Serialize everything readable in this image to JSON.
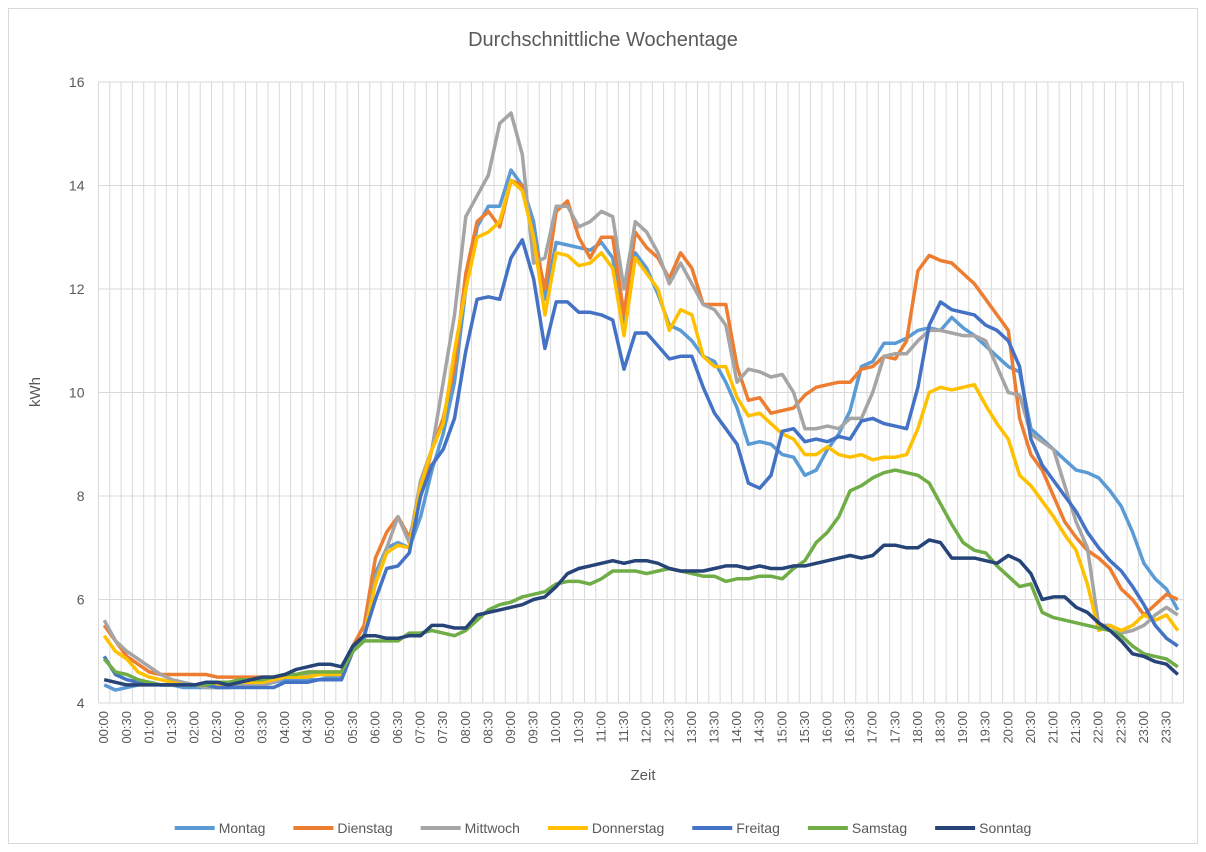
{
  "chart_data": {
    "type": "line",
    "title": "Durchschnittliche Wochentage",
    "y_label": "kWh",
    "x_label": "Zeit",
    "categories": [
      "00:00",
      null,
      "00:30",
      null,
      "01:00",
      null,
      "01:30",
      null,
      "02:00",
      null,
      "02:30",
      null,
      "03:00",
      null,
      "03:30",
      null,
      "04:00",
      null,
      "04:30",
      null,
      "05:00",
      null,
      "05:30",
      null,
      "06:00",
      null,
      "06:30",
      null,
      "07:00",
      null,
      "07:30",
      null,
      "08:00",
      null,
      "08:30",
      null,
      "09:00",
      null,
      "09:30",
      null,
      "10:00",
      null,
      "10:30",
      null,
      "11:00",
      null,
      "11:30",
      null,
      "12:00",
      null,
      "12:30",
      null,
      "13:00",
      null,
      "13:30",
      null,
      "14:00",
      null,
      "14:30",
      null,
      "15:00",
      null,
      "15:30",
      null,
      "16:00",
      null,
      "16:30",
      null,
      "17:00",
      null,
      "17:30",
      null,
      "18:00",
      null,
      "18:30",
      null,
      "19:00",
      null,
      "19:30",
      null,
      "20:00",
      null,
      "20:30",
      null,
      "21:00",
      null,
      "21:30",
      null,
      "22:00",
      null,
      "22:30",
      null,
      "23:00",
      null,
      "23:30",
      null
    ],
    "ylim": [
      4,
      16
    ],
    "yticks": [
      4,
      6,
      8,
      10,
      12,
      14,
      16
    ],
    "grid": true,
    "legend": "bottom",
    "series": [
      {
        "name": "Montag",
        "color": "#5b9bd5",
        "values": [
          4.35,
          4.25,
          4.3,
          4.35,
          4.4,
          4.35,
          4.35,
          4.3,
          4.3,
          4.3,
          4.3,
          4.3,
          4.35,
          4.35,
          4.35,
          4.4,
          4.45,
          4.45,
          4.45,
          4.45,
          4.5,
          4.5,
          5.0,
          5.2,
          6.5,
          7.0,
          7.1,
          7.0,
          7.6,
          8.5,
          9.2,
          10.2,
          12.0,
          13.2,
          13.6,
          13.6,
          14.3,
          14.0,
          13.3,
          11.8,
          12.9,
          12.85,
          12.8,
          12.75,
          12.9,
          12.6,
          11.3,
          12.7,
          12.4,
          11.9,
          11.3,
          11.2,
          11.0,
          10.7,
          10.6,
          10.2,
          9.7,
          9.0,
          9.05,
          9.0,
          8.8,
          8.75,
          8.4,
          8.5,
          8.9,
          9.2,
          9.65,
          10.5,
          10.6,
          10.95,
          10.95,
          11.05,
          11.2,
          11.25,
          11.2,
          11.45,
          11.25,
          11.1,
          10.9,
          10.7,
          10.5,
          10.4,
          9.3,
          9.1,
          8.9,
          8.7,
          8.5,
          8.45,
          8.35,
          8.1,
          7.8,
          7.3,
          6.7,
          6.4,
          6.2,
          5.8
        ]
      },
      {
        "name": "Dienstag",
        "color": "#ed7d31",
        "values": [
          5.5,
          5.2,
          4.9,
          4.75,
          4.6,
          4.55,
          4.55,
          4.55,
          4.55,
          4.55,
          4.5,
          4.5,
          4.5,
          4.5,
          4.5,
          4.5,
          4.55,
          4.55,
          4.6,
          4.6,
          4.6,
          4.6,
          5.1,
          5.5,
          6.8,
          7.3,
          7.6,
          7.2,
          8.0,
          8.9,
          9.5,
          10.5,
          12.3,
          13.3,
          13.5,
          13.2,
          14.1,
          14.0,
          13.0,
          12.0,
          13.5,
          13.7,
          13.0,
          12.6,
          13.0,
          13.0,
          11.5,
          13.1,
          12.8,
          12.6,
          12.2,
          12.7,
          12.4,
          11.7,
          11.7,
          11.7,
          10.5,
          9.85,
          9.9,
          9.6,
          9.65,
          9.7,
          9.95,
          10.1,
          10.15,
          10.2,
          10.2,
          10.45,
          10.5,
          10.7,
          10.65,
          11.0,
          12.35,
          12.65,
          12.55,
          12.5,
          12.3,
          12.1,
          11.8,
          11.5,
          11.2,
          9.5,
          8.8,
          8.5,
          8.0,
          7.5,
          7.2,
          6.95,
          6.8,
          6.6,
          6.2,
          6.0,
          5.7,
          5.9,
          6.1,
          6.0
        ]
      },
      {
        "name": "Mittwoch",
        "color": "#a5a5a5",
        "values": [
          5.6,
          5.2,
          5.0,
          4.85,
          4.7,
          4.55,
          4.45,
          4.4,
          4.35,
          4.3,
          4.3,
          4.3,
          4.35,
          4.35,
          4.35,
          4.4,
          4.5,
          4.5,
          4.55,
          4.55,
          4.55,
          4.6,
          5.0,
          5.3,
          6.4,
          7.0,
          7.6,
          7.1,
          8.3,
          8.9,
          10.2,
          11.5,
          13.4,
          13.8,
          14.2,
          15.2,
          15.4,
          14.6,
          12.5,
          12.6,
          13.6,
          13.6,
          13.2,
          13.3,
          13.5,
          13.4,
          12.0,
          13.3,
          13.1,
          12.7,
          12.1,
          12.5,
          12.1,
          11.7,
          11.6,
          11.3,
          10.2,
          10.45,
          10.4,
          10.3,
          10.35,
          10.0,
          9.3,
          9.3,
          9.35,
          9.3,
          9.5,
          9.5,
          10.0,
          10.7,
          10.75,
          10.75,
          11.0,
          11.2,
          11.2,
          11.15,
          11.1,
          11.1,
          11.0,
          10.5,
          10.0,
          9.95,
          9.2,
          9.05,
          8.9,
          8.2,
          7.5,
          7.0,
          5.5,
          5.5,
          5.35,
          5.4,
          5.5,
          5.7,
          5.85,
          5.7
        ]
      },
      {
        "name": "Donnerstag",
        "color": "#ffc000",
        "values": [
          5.3,
          5.0,
          4.85,
          4.6,
          4.5,
          4.45,
          4.4,
          4.35,
          4.35,
          4.35,
          4.35,
          4.35,
          4.4,
          4.4,
          4.4,
          4.45,
          4.5,
          4.5,
          4.5,
          4.55,
          4.55,
          4.55,
          5.0,
          5.3,
          6.3,
          6.9,
          7.05,
          7.0,
          8.2,
          8.9,
          9.4,
          10.8,
          12.0,
          13.0,
          13.1,
          13.3,
          14.1,
          13.9,
          13.0,
          11.5,
          12.7,
          12.65,
          12.45,
          12.5,
          12.7,
          12.4,
          11.1,
          12.6,
          12.3,
          12.0,
          11.2,
          11.6,
          11.5,
          10.7,
          10.5,
          10.5,
          9.9,
          9.55,
          9.6,
          9.4,
          9.2,
          9.1,
          8.8,
          8.8,
          8.95,
          8.8,
          8.75,
          8.8,
          8.7,
          8.75,
          8.75,
          8.8,
          9.3,
          10.0,
          10.1,
          10.05,
          10.1,
          10.15,
          9.75,
          9.4,
          9.1,
          8.4,
          8.2,
          7.9,
          7.6,
          7.25,
          6.95,
          6.3,
          5.4,
          5.5,
          5.4,
          5.5,
          5.7,
          5.6,
          5.7,
          5.4
        ]
      },
      {
        "name": "Freitag",
        "color": "#4472c4",
        "values": [
          4.9,
          4.55,
          4.45,
          4.4,
          4.4,
          4.35,
          4.35,
          4.35,
          4.35,
          4.35,
          4.3,
          4.3,
          4.3,
          4.3,
          4.3,
          4.3,
          4.4,
          4.4,
          4.4,
          4.45,
          4.45,
          4.45,
          5.0,
          5.3,
          6.0,
          6.6,
          6.65,
          6.9,
          8.0,
          8.6,
          8.9,
          9.5,
          10.8,
          11.8,
          11.85,
          11.8,
          12.6,
          12.95,
          12.2,
          10.85,
          11.75,
          11.75,
          11.55,
          11.55,
          11.5,
          11.4,
          10.45,
          11.15,
          11.15,
          10.9,
          10.65,
          10.7,
          10.7,
          10.1,
          9.6,
          9.3,
          9.0,
          8.25,
          8.15,
          8.4,
          9.25,
          9.3,
          9.05,
          9.1,
          9.05,
          9.15,
          9.1,
          9.45,
          9.5,
          9.4,
          9.35,
          9.3,
          10.1,
          11.3,
          11.75,
          11.6,
          11.55,
          11.5,
          11.3,
          11.2,
          11.0,
          10.5,
          9.1,
          8.6,
          8.3,
          8.0,
          7.7,
          7.3,
          7.0,
          6.75,
          6.55,
          6.25,
          5.9,
          5.5,
          5.25,
          5.1
        ]
      },
      {
        "name": "Samstag",
        "color": "#70ad47",
        "values": [
          4.85,
          4.6,
          4.55,
          4.45,
          4.4,
          4.35,
          4.35,
          4.35,
          4.35,
          4.35,
          4.4,
          4.4,
          4.45,
          4.45,
          4.45,
          4.5,
          4.55,
          4.55,
          4.6,
          4.6,
          4.6,
          4.6,
          5.0,
          5.2,
          5.2,
          5.2,
          5.2,
          5.35,
          5.35,
          5.4,
          5.35,
          5.3,
          5.4,
          5.6,
          5.8,
          5.9,
          5.95,
          6.05,
          6.1,
          6.15,
          6.3,
          6.35,
          6.35,
          6.3,
          6.4,
          6.55,
          6.55,
          6.55,
          6.5,
          6.55,
          6.6,
          6.55,
          6.5,
          6.45,
          6.45,
          6.35,
          6.4,
          6.4,
          6.45,
          6.45,
          6.4,
          6.6,
          6.75,
          7.1,
          7.3,
          7.6,
          8.1,
          8.2,
          8.35,
          8.45,
          8.5,
          8.45,
          8.4,
          8.25,
          7.85,
          7.45,
          7.1,
          6.95,
          6.9,
          6.65,
          6.45,
          6.25,
          6.3,
          5.75,
          5.65,
          5.6,
          5.55,
          5.5,
          5.45,
          5.4,
          5.3,
          5.1,
          4.95,
          4.9,
          4.85,
          4.7
        ]
      },
      {
        "name": "Sonntag",
        "color": "#264478",
        "values": [
          4.45,
          4.4,
          4.35,
          4.35,
          4.35,
          4.35,
          4.35,
          4.35,
          4.35,
          4.4,
          4.4,
          4.35,
          4.4,
          4.45,
          4.5,
          4.5,
          4.55,
          4.65,
          4.7,
          4.75,
          4.75,
          4.7,
          5.1,
          5.3,
          5.3,
          5.25,
          5.25,
          5.3,
          5.3,
          5.5,
          5.5,
          5.45,
          5.45,
          5.7,
          5.75,
          5.8,
          5.85,
          5.9,
          6.0,
          6.05,
          6.25,
          6.5,
          6.6,
          6.65,
          6.7,
          6.75,
          6.7,
          6.75,
          6.75,
          6.7,
          6.6,
          6.55,
          6.55,
          6.55,
          6.6,
          6.65,
          6.65,
          6.6,
          6.65,
          6.6,
          6.6,
          6.65,
          6.65,
          6.7,
          6.75,
          6.8,
          6.85,
          6.8,
          6.85,
          7.05,
          7.05,
          7.0,
          7.0,
          7.15,
          7.1,
          6.8,
          6.8,
          6.8,
          6.75,
          6.7,
          6.85,
          6.75,
          6.5,
          6.0,
          6.05,
          6.05,
          5.85,
          5.75,
          5.55,
          5.4,
          5.2,
          4.95,
          4.9,
          4.8,
          4.75,
          4.55
        ]
      }
    ]
  }
}
